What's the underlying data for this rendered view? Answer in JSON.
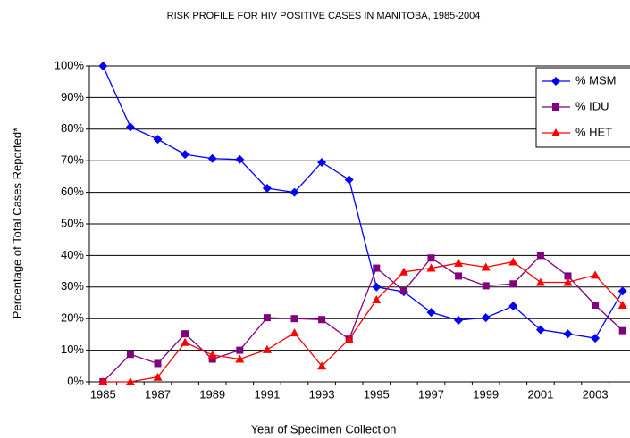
{
  "chart_data": {
    "type": "line",
    "title": "RISK PROFILE FOR HIV POSITIVE CASES IN MANITOBA, 1985-2004",
    "x_label": "Year of Specimen Collection",
    "y_label": "Percentage of Total Cases Reported*",
    "categories": [
      "1985",
      null,
      "1987",
      null,
      "1989",
      null,
      "1991",
      null,
      "1993",
      null,
      "1995",
      null,
      "1997",
      null,
      "1999",
      null,
      "2001",
      null,
      "2003",
      null
    ],
    "series": [
      {
        "name": "% MSM",
        "color": "#0000ff",
        "marker": "diamond",
        "values": [
          100,
          80.7,
          76.8,
          72,
          70.7,
          70.4,
          61.3,
          60,
          69.5,
          64,
          30,
          28.5,
          22,
          19.5,
          20.3,
          24,
          16.5,
          15.2,
          13.8,
          28.7
        ]
      },
      {
        "name": "% IDU",
        "color": "#800080",
        "marker": "square",
        "values": [
          0,
          8.7,
          5.8,
          15.2,
          7.2,
          10,
          20.3,
          20,
          19.7,
          13.5,
          36,
          28.8,
          39.2,
          33.5,
          30.4,
          31,
          40,
          33.5,
          24.3,
          16.2
        ]
      },
      {
        "name": "% HET",
        "color": "#ff0000",
        "marker": "triangle",
        "values": [
          0,
          0,
          1.5,
          12.5,
          8.5,
          7.2,
          10.2,
          15.5,
          5,
          13.5,
          26,
          34.8,
          36,
          37.6,
          36.3,
          38,
          31.5,
          31.5,
          33.8,
          24.3
        ]
      }
    ],
    "ylim": [
      0,
      100
    ],
    "yticks": [
      {
        "value": 0,
        "label": "0%"
      },
      {
        "value": 10,
        "label": "10%"
      },
      {
        "value": 20,
        "label": "20%"
      },
      {
        "value": 30,
        "label": "30%"
      },
      {
        "value": 40,
        "label": "40%"
      },
      {
        "value": 50,
        "label": "50%"
      },
      {
        "value": 60,
        "label": "60%"
      },
      {
        "value": 70,
        "label": "70%"
      },
      {
        "value": 80,
        "label": "80%"
      },
      {
        "value": 90,
        "label": "90%"
      },
      {
        "value": 100,
        "label": "100%"
      }
    ],
    "grid": true,
    "legend": "top-right"
  }
}
